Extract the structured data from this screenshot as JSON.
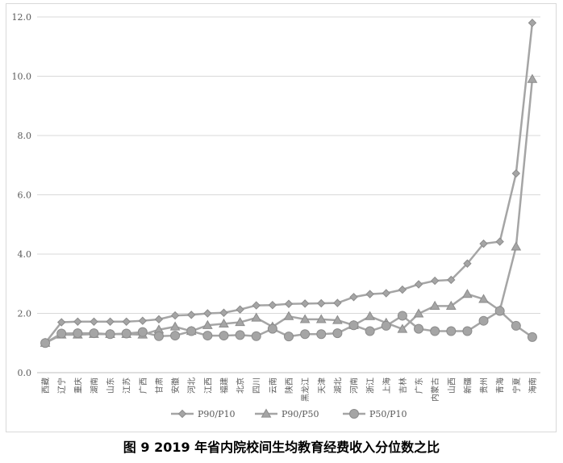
{
  "caption": "图 9 2019 年省内院校间生均教育经费收入分位数之比",
  "colors": {
    "series_line": "#a5a5a5",
    "marker_fill": "#a5a5a5",
    "marker_stroke": "#8c8c8c",
    "grid": "#d9d9d9",
    "axis": "#bfbfbf",
    "text": "#595959"
  },
  "chart_data": {
    "type": "line",
    "title": "",
    "xlabel": "",
    "ylabel": "",
    "ylim": [
      0,
      12
    ],
    "yticks": [
      0.0,
      2.0,
      4.0,
      6.0,
      8.0,
      10.0,
      12.0
    ],
    "ytick_labels": [
      "0.0",
      "2.0",
      "4.0",
      "6.0",
      "8.0",
      "10.0",
      "12.0"
    ],
    "grid": "horizontal",
    "legend_position": "bottom",
    "categories": [
      "西藏",
      "辽宁",
      "重庆",
      "湖南",
      "山东",
      "江苏",
      "广西",
      "甘肃",
      "安徽",
      "河北",
      "江西",
      "福建",
      "北京",
      "四川",
      "云南",
      "陕西",
      "黑龙江",
      "天津",
      "湖北",
      "河南",
      "浙江",
      "上海",
      "吉林",
      "广东",
      "内蒙古",
      "山西",
      "新疆",
      "贵州",
      "青海",
      "宁夏",
      "海南"
    ],
    "series": [
      {
        "name": "P90/P10",
        "marker": "diamond",
        "values": [
          1.0,
          1.7,
          1.72,
          1.72,
          1.72,
          1.72,
          1.75,
          1.8,
          1.93,
          1.95,
          2.0,
          2.02,
          2.13,
          2.27,
          2.28,
          2.32,
          2.33,
          2.34,
          2.35,
          2.55,
          2.65,
          2.68,
          2.8,
          2.98,
          3.1,
          3.13,
          3.68,
          4.35,
          4.42,
          6.72,
          11.8
        ]
      },
      {
        "name": "P90/P50",
        "marker": "triangle",
        "values": [
          1.0,
          1.28,
          1.28,
          1.3,
          1.3,
          1.3,
          1.28,
          1.45,
          1.55,
          1.4,
          1.6,
          1.65,
          1.7,
          1.85,
          1.55,
          1.9,
          1.8,
          1.8,
          1.77,
          1.6,
          1.9,
          1.68,
          1.47,
          1.99,
          2.25,
          2.25,
          2.65,
          2.48,
          2.1,
          4.25,
          9.9
        ]
      },
      {
        "name": "P50/P10",
        "marker": "circle",
        "values": [
          1.0,
          1.32,
          1.33,
          1.33,
          1.3,
          1.32,
          1.37,
          1.23,
          1.25,
          1.4,
          1.25,
          1.25,
          1.27,
          1.23,
          1.48,
          1.22,
          1.3,
          1.3,
          1.33,
          1.6,
          1.4,
          1.58,
          1.92,
          1.48,
          1.4,
          1.4,
          1.4,
          1.75,
          2.08,
          1.58,
          1.2
        ]
      }
    ]
  }
}
